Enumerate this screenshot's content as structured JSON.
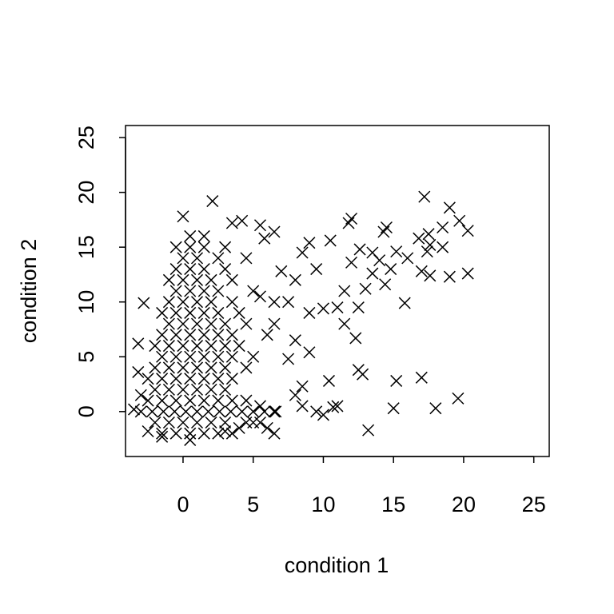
{
  "chart_data": {
    "type": "scatter",
    "x_label": "condition 1",
    "y_label": "condition 2",
    "xlim": [
      -4.1,
      26.1
    ],
    "ylim": [
      -4.1,
      26.1
    ],
    "xticks": [
      0,
      5,
      10,
      15,
      20,
      25
    ],
    "yticks": [
      0,
      5,
      10,
      15,
      20,
      25
    ],
    "color": "#000000",
    "x": [
      -1.5,
      -0.5,
      0.5,
      1.5,
      2.5,
      3.5,
      -2,
      -1,
      0,
      1,
      2,
      3,
      4.5,
      5.5,
      -3,
      -2.2,
      -1.4,
      -0.6,
      0.2,
      1,
      1.8,
      2.6,
      3.4,
      4.2,
      5,
      5.8,
      6.6,
      -2.5,
      -1.5,
      -0.5,
      0.5,
      1.5,
      2.5,
      3.5,
      4.5,
      -2,
      -1,
      0,
      1,
      2,
      3,
      -2.5,
      -1.5,
      -0.5,
      0.5,
      1.5,
      2.5,
      3.5,
      -2,
      -1,
      0,
      1,
      2,
      3,
      4.5,
      -1.5,
      -0.5,
      0.5,
      1.5,
      2.5,
      3.5,
      5,
      -2,
      -1,
      0,
      1,
      2,
      3,
      4,
      -1.5,
      -0.5,
      0.5,
      1.5,
      2.5,
      3.5,
      6,
      -1,
      0,
      1,
      2,
      3,
      4.5,
      -1.5,
      -0.5,
      0.5,
      1.5,
      2.5,
      4,
      -1,
      0,
      1,
      2,
      3.5,
      6.5,
      -0.5,
      0.5,
      1.5,
      2.5,
      5,
      -1,
      0,
      1,
      2,
      3.5,
      -0.5,
      0.5,
      1.5,
      3,
      0,
      1,
      2.5,
      4.5,
      -0.5,
      0.5,
      1.5,
      3,
      0.5,
      1.5,
      17.2,
      19.0,
      20.3,
      19.7,
      18.5,
      17.5,
      16.8,
      17.6,
      17.4,
      17.0,
      17.6,
      19.0,
      20.3,
      15.8,
      17.0,
      19.6,
      18.0,
      15.0,
      15.2,
      13.2,
      12.8,
      12.5,
      12.3,
      14.5,
      14.3,
      12.0,
      11.8,
      15.2,
      14.0,
      14.8,
      13.5,
      13.0,
      14.4,
      12.6,
      12.0,
      11.5,
      11.0,
      10.4,
      10.7,
      10.0,
      11.0,
      9.5,
      8.5,
      8.0,
      8.5,
      9.0,
      10.0,
      10.5,
      9.0,
      8.5,
      9.5,
      8.0,
      7.0,
      6.5,
      5.8,
      5.5,
      4.2,
      3.5,
      2.1,
      0.0,
      -2.8,
      -3.2,
      -3.2,
      -3.5,
      -3.0,
      -2.5,
      -1.5,
      0.5,
      6.5,
      6.0,
      5.5,
      6.5,
      5.0,
      4.0,
      3.0,
      7.5,
      8.0,
      6.5,
      5.5,
      7.5,
      9.0,
      11.5,
      12.5,
      13.5,
      16.0,
      18.5
    ],
    "values": [
      -2,
      -2,
      -2,
      -2,
      -2,
      -2,
      -1,
      -1,
      -1,
      -1,
      -1,
      -1,
      -1,
      -1,
      0,
      0,
      0,
      0,
      0,
      0,
      0,
      0,
      0,
      0,
      0,
      0,
      0,
      1,
      1,
      1,
      1,
      1,
      1,
      1,
      1,
      2,
      2,
      2,
      2,
      2,
      2,
      3,
      3,
      3,
      3,
      3,
      3,
      3,
      4,
      4,
      4,
      4,
      4,
      4,
      4,
      5,
      5,
      5,
      5,
      5,
      5,
      5,
      6,
      6,
      6,
      6,
      6,
      6,
      6,
      7,
      7,
      7,
      7,
      7,
      7,
      7,
      8,
      8,
      8,
      8,
      8,
      8,
      9,
      9,
      9,
      9,
      9,
      9,
      10,
      10,
      10,
      10,
      10,
      10,
      11,
      11,
      11,
      11,
      11,
      12,
      12,
      12,
      12,
      12,
      13,
      13,
      13,
      13,
      14,
      14,
      14,
      14,
      15,
      15,
      15,
      15,
      16,
      16,
      19.6,
      18.6,
      16.5,
      17.4,
      16.8,
      16.2,
      15.8,
      15.2,
      14.6,
      12.8,
      12.4,
      12.3,
      12.6,
      9.9,
      3.1,
      1.2,
      0.3,
      0.3,
      2.8,
      -1.7,
      3.4,
      3.8,
      6.7,
      16.8,
      16.4,
      17.6,
      17.2,
      14.6,
      13.8,
      13.0,
      12.6,
      11.2,
      11.6,
      14.8,
      13.6,
      11.0,
      9.5,
      2.8,
      0.4,
      -0.3,
      0.5,
      0.0,
      0.5,
      1.5,
      2.3,
      5.4,
      9.4,
      15.6,
      15.4,
      14.5,
      13.0,
      12.0,
      12.8,
      16.4,
      15.8,
      17.0,
      17.4,
      17.2,
      19.2,
      17.8,
      9.9,
      6.2,
      3.6,
      0.2,
      1.5,
      -1.8,
      -2.3,
      -2.6,
      -2.0,
      -1.5,
      0.5,
      0.0,
      -1.0,
      -1.5,
      -1.8,
      4.8,
      6.5,
      8.0,
      10.5,
      10.0,
      9.0,
      8.0,
      9.5,
      14.5,
      14.0,
      15.0
    ]
  }
}
